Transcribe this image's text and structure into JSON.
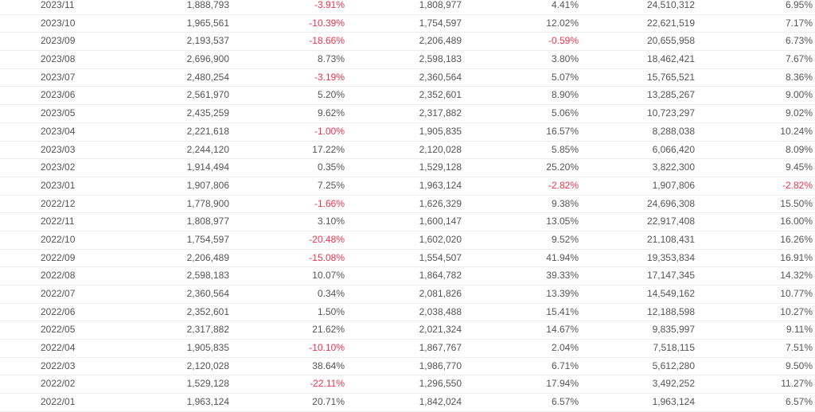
{
  "colors": {
    "text": "#555555",
    "negative": "#f0334d",
    "border": "#ececec"
  },
  "table": {
    "rows": [
      [
        "2023/11",
        "1,888,793",
        "-3.91%",
        "1,808,977",
        "4.41%",
        "24,510,312",
        "6.95%"
      ],
      [
        "2023/10",
        "1,965,561",
        "-10.39%",
        "1,754,597",
        "12.02%",
        "22,621,519",
        "7.17%"
      ],
      [
        "2023/09",
        "2,193,537",
        "-18.66%",
        "2,206,489",
        "-0.59%",
        "20,655,958",
        "6.73%"
      ],
      [
        "2023/08",
        "2,696,900",
        "8.73%",
        "2,598,183",
        "3.80%",
        "18,462,421",
        "7.67%"
      ],
      [
        "2023/07",
        "2,480,254",
        "-3.19%",
        "2,360,564",
        "5.07%",
        "15,765,521",
        "8.36%"
      ],
      [
        "2023/06",
        "2,561,970",
        "5.20%",
        "2,352,601",
        "8.90%",
        "13,285,267",
        "9.00%"
      ],
      [
        "2023/05",
        "2,435,259",
        "9.62%",
        "2,317,882",
        "5.06%",
        "10,723,297",
        "9.02%"
      ],
      [
        "2023/04",
        "2,221,618",
        "-1.00%",
        "1,905,835",
        "16.57%",
        "8,288,038",
        "10.24%"
      ],
      [
        "2023/03",
        "2,244,120",
        "17.22%",
        "2,120,028",
        "5.85%",
        "6,066,420",
        "8.09%"
      ],
      [
        "2023/02",
        "1,914,494",
        "0.35%",
        "1,529,128",
        "25.20%",
        "3,822,300",
        "9.45%"
      ],
      [
        "2023/01",
        "1,907,806",
        "7.25%",
        "1,963,124",
        "-2.82%",
        "1,907,806",
        "-2.82%"
      ],
      [
        "2022/12",
        "1,778,900",
        "-1.66%",
        "1,626,329",
        "9.38%",
        "24,696,308",
        "15.50%"
      ],
      [
        "2022/11",
        "1,808,977",
        "3.10%",
        "1,600,147",
        "13.05%",
        "22,917,408",
        "16.00%"
      ],
      [
        "2022/10",
        "1,754,597",
        "-20.48%",
        "1,602,020",
        "9.52%",
        "21,108,431",
        "16.26%"
      ],
      [
        "2022/09",
        "2,206,489",
        "-15.08%",
        "1,554,507",
        "41.94%",
        "19,353,834",
        "16.91%"
      ],
      [
        "2022/08",
        "2,598,183",
        "10.07%",
        "1,864,782",
        "39.33%",
        "17,147,345",
        "14.32%"
      ],
      [
        "2022/07",
        "2,360,564",
        "0.34%",
        "2,081,826",
        "13.39%",
        "14,549,162",
        "10.77%"
      ],
      [
        "2022/06",
        "2,352,601",
        "1.50%",
        "2,038,488",
        "15.41%",
        "12,188,598",
        "10.27%"
      ],
      [
        "2022/05",
        "2,317,882",
        "21.62%",
        "2,021,324",
        "14.67%",
        "9,835,997",
        "9.11%"
      ],
      [
        "2022/04",
        "1,905,835",
        "-10.10%",
        "1,867,767",
        "2.04%",
        "7,518,115",
        "7.51%"
      ],
      [
        "2022/03",
        "2,120,028",
        "38.64%",
        "1,986,770",
        "6.71%",
        "5,612,280",
        "9.50%"
      ],
      [
        "2022/02",
        "1,529,128",
        "-22.11%",
        "1,296,550",
        "17.94%",
        "3,492,252",
        "11.27%"
      ],
      [
        "2022/01",
        "1,963,124",
        "20.71%",
        "1,842,024",
        "6.57%",
        "1,963,124",
        "6.57%"
      ]
    ]
  }
}
